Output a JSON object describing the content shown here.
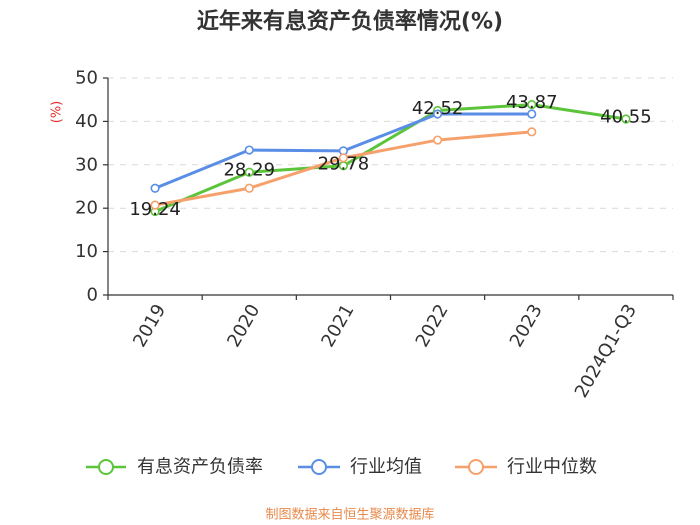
{
  "chart_data": {
    "type": "line",
    "title": "近年来有息资产负债率情况(%)",
    "xlabel": "",
    "ylabel": "(%)",
    "ylabel_color": "#e0302c",
    "categories": [
      "2019",
      "2020",
      "2021",
      "2022",
      "2023",
      "2024Q1-Q3"
    ],
    "ylim": [
      0,
      50
    ],
    "yticks": [
      0,
      10,
      20,
      30,
      40,
      50
    ],
    "grid": true,
    "legend_position": "bottom",
    "series": [
      {
        "name": "有息资产负债率",
        "color": "#5cc43a",
        "show_labels": true,
        "values": [
          19.24,
          28.29,
          29.78,
          42.52,
          43.87,
          40.55
        ]
      },
      {
        "name": "行业均值",
        "color": "#5a8ee6",
        "show_labels": false,
        "values": [
          24.6,
          33.4,
          33.2,
          41.7,
          41.7,
          null
        ]
      },
      {
        "name": "行业中位数",
        "color": "#f6a06b",
        "show_labels": false,
        "values": [
          20.7,
          24.6,
          31.6,
          35.7,
          37.6,
          null
        ]
      }
    ]
  },
  "footer": {
    "source": "制图数据来自恒生聚源数据库",
    "color": "#e8894b"
  }
}
